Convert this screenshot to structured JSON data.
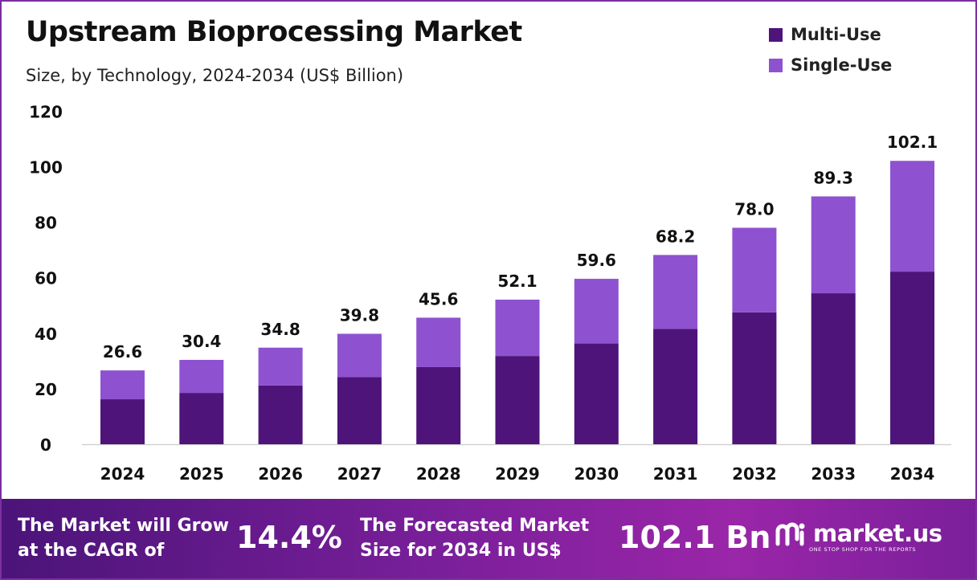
{
  "header": {
    "title": "Upstream Bioprocessing Market",
    "subtitle": "Size, by Technology, 2024-2034 (US$ Billion)"
  },
  "colors": {
    "multi_use": "#4e147a",
    "single_use": "#8e52d0",
    "banner_start": "#4b1479",
    "banner_end": "#9a26a8",
    "border": "#7b2fa0"
  },
  "chart_data": {
    "type": "bar",
    "stacked": true,
    "title": "Upstream Bioprocessing Market",
    "subtitle": "Size, by Technology, 2024-2034 (US$ Billion)",
    "categories": [
      "2024",
      "2025",
      "2026",
      "2027",
      "2028",
      "2029",
      "2030",
      "2031",
      "2032",
      "2033",
      "2034"
    ],
    "series": [
      {
        "name": "Multi-Use",
        "values": [
          16.2,
          18.5,
          21.2,
          24.2,
          27.8,
          31.8,
          36.3,
          41.6,
          47.5,
          54.4,
          62.2
        ]
      },
      {
        "name": "Single-Use",
        "values": [
          10.4,
          11.9,
          13.6,
          15.6,
          17.8,
          20.3,
          23.3,
          26.6,
          30.5,
          34.9,
          39.9
        ]
      }
    ],
    "totals": [
      "26.6",
      "30.4",
      "34.8",
      "39.8",
      "45.6",
      "52.1",
      "59.6",
      "68.2",
      "78.0",
      "89.3",
      "102.1"
    ],
    "ylim": [
      0,
      120
    ],
    "yticks": [
      0,
      20,
      40,
      60,
      80,
      100,
      120
    ],
    "grid": false,
    "legend_position": "top-right"
  },
  "banner": {
    "cagr_label_line1": "The Market will Grow",
    "cagr_label_line2": "at the CAGR of",
    "cagr_value": "14.4%",
    "forecast_label_line1": "The Forecasted Market",
    "forecast_label_line2": "Size for 2034 in US$",
    "forecast_value": "102.1 Bn",
    "brand_name": "market.us",
    "brand_tagline": "ONE STOP SHOP FOR THE REPORTS",
    "brand_icon": "market-us-logo-icon"
  }
}
